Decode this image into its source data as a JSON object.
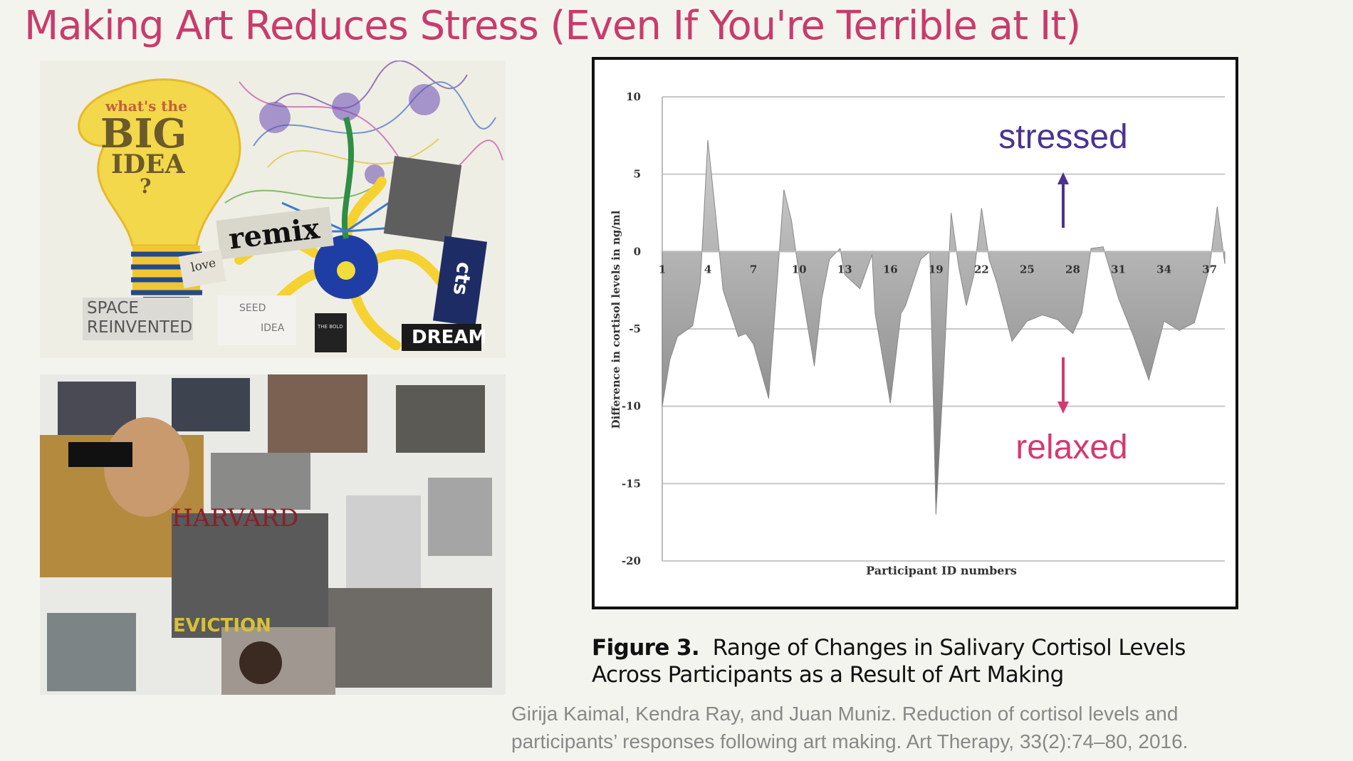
{
  "slide": {
    "title": "Making Art Reduces Stress (Even If You're Terrible at It)",
    "title_color": "#c93b6c"
  },
  "collage_top": {
    "bulb_text_1": "what's the",
    "bulb_text_2": "BIG",
    "bulb_text_3": "IDEA",
    "bulb_text_4": "?",
    "remix": "remix",
    "love": "love",
    "space": "SPACE",
    "reinvented": "REINVENTED",
    "seed": "SEED",
    "idea": "IDEA",
    "dream": "DREAM",
    "side_tag": "cts",
    "small_label": "THE BOLD"
  },
  "collage_bottom": {
    "harvard": "HARVARD",
    "eviction": "EVICTION"
  },
  "chart_data": {
    "type": "area",
    "xlabel": "Participant ID numbers",
    "ylabel": "Difference in cortisol levels in ng/ml",
    "ylim": [
      -20,
      10
    ],
    "yticks": [
      10,
      5,
      0,
      -5,
      -10,
      -15,
      -20
    ],
    "xticks": [
      1,
      4,
      7,
      10,
      13,
      16,
      19,
      22,
      25,
      28,
      31,
      34,
      37
    ],
    "x": [
      1,
      1.5,
      2,
      3,
      3.5,
      4,
      4.5,
      5,
      6,
      6.5,
      7,
      8,
      8.7,
      9,
      9.5,
      10,
      11,
      11.5,
      12,
      12.7,
      13,
      14,
      14.8,
      15,
      16,
      16.7,
      17,
      18,
      18.6,
      19,
      19.5,
      20,
      20.5,
      21,
      21.5,
      22,
      22.5,
      23,
      24,
      25,
      26,
      27,
      28,
      28.6,
      29.2,
      30,
      31,
      32,
      33,
      34,
      35,
      36,
      37,
      37.5,
      38
    ],
    "values": [
      -10,
      -7,
      -5.5,
      -4.8,
      -2,
      7.2,
      2.5,
      -2.5,
      -5.5,
      -5.3,
      -6,
      -9.5,
      0,
      4,
      2,
      -1.5,
      -7.4,
      -3,
      -0.5,
      0.2,
      -1.5,
      -2.4,
      -0.2,
      -4,
      -9.8,
      -4,
      -3.5,
      -0.5,
      0,
      -17,
      -8,
      2.5,
      -1,
      -3.5,
      -1.5,
      2.8,
      -0.5,
      -2,
      -5.8,
      -4.5,
      -4.1,
      -4.4,
      -5.3,
      -4,
      0.2,
      0.3,
      -3,
      -5.5,
      -8.3,
      -4.5,
      -5.1,
      -4.6,
      -1,
      2.9,
      -0.8
    ],
    "annotations": [
      {
        "text": "stressed",
        "color": "#4b3290"
      },
      {
        "text": "relaxed",
        "color": "#d43a6e"
      }
    ],
    "grid": true
  },
  "caption": {
    "figure_label": "Figure 3.",
    "line1": "Range of Changes in Salivary Cortisol Levels",
    "line2": "Across Participants as a Result of Art Making"
  },
  "citation": {
    "line1": "Girija Kaimal, Kendra Ray, and Juan Muniz. Reduction of cortisol levels and",
    "line2": "participants’ responses following art making. Art Therapy, 33(2):74–80, 2016."
  }
}
